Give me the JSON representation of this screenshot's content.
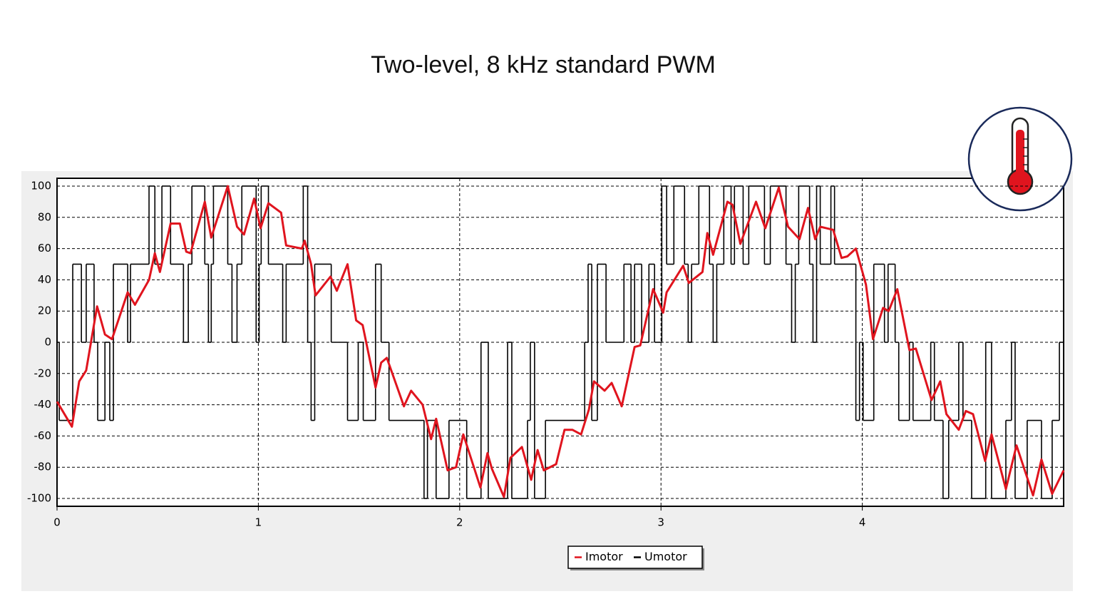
{
  "chart_data": {
    "type": "line",
    "title": "Two-level, 8 kHz standard PWM",
    "xlim": [
      0,
      5
    ],
    "xticks": [
      0,
      1,
      2,
      3,
      4
    ],
    "ylim": [
      -105,
      105
    ],
    "yticks": [
      -100,
      -80,
      -60,
      -40,
      -20,
      0,
      20,
      40,
      60,
      80,
      100
    ],
    "grid": true,
    "legend": "bottom",
    "series": [
      {
        "name": "Umotor",
        "color": "#000000",
        "drawstyle": "steps-post",
        "x": [
          0,
          0.011,
          0.078,
          0.121,
          0.145,
          0.184,
          0.202,
          0.238,
          0.262,
          0.28,
          0.351,
          0.365,
          0.457,
          0.486,
          0.521,
          0.564,
          0.628,
          0.652,
          0.67,
          0.734,
          0.752,
          0.766,
          0.777,
          0.848,
          0.869,
          0.894,
          0.918,
          0.989,
          1.004,
          1.014,
          1.05,
          1.121,
          1.138,
          1.223,
          1.245,
          1.262,
          1.28,
          1.362,
          1.443,
          1.496,
          1.521,
          1.582,
          1.61,
          1.649,
          1.823,
          1.84,
          1.883,
          1.947,
          2.035,
          2.106,
          2.142,
          2.238,
          2.259,
          2.337,
          2.351,
          2.372,
          2.426,
          2.621,
          2.638,
          2.656,
          2.684,
          2.727,
          2.816,
          2.851,
          2.869,
          2.904,
          2.94,
          2.968,
          3.004,
          3.028,
          3.064,
          3.117,
          3.135,
          3.152,
          3.188,
          3.241,
          3.259,
          3.277,
          3.312,
          3.348,
          3.365,
          3.408,
          3.436,
          3.514,
          3.543,
          3.621,
          3.649,
          3.667,
          3.684,
          3.738,
          3.755,
          3.773,
          3.791,
          3.844,
          3.862,
          3.968,
          3.986,
          4.004,
          4.057,
          4.11,
          4.128,
          4.163,
          4.181,
          4.234,
          4.252,
          4.34,
          4.358,
          4.401,
          4.429,
          4.479,
          4.5,
          4.543,
          4.613,
          4.642,
          4.713,
          4.741,
          4.759,
          4.819,
          4.89,
          4.943,
          4.979
        ],
        "values": [
          0,
          -50,
          50,
          0,
          50,
          0,
          -50,
          0,
          -50,
          50,
          0,
          50,
          100,
          50,
          100,
          50,
          0,
          50,
          100,
          50,
          0,
          50,
          100,
          50,
          0,
          50,
          100,
          0,
          50,
          100,
          50,
          0,
          50,
          100,
          0,
          -50,
          50,
          0,
          -50,
          0,
          -50,
          50,
          0,
          -50,
          -100,
          -50,
          -100,
          -50,
          -100,
          0,
          -100,
          0,
          -100,
          -50,
          0,
          -100,
          -50,
          0,
          50,
          -50,
          50,
          0,
          50,
          0,
          50,
          0,
          50,
          0,
          100,
          50,
          100,
          50,
          0,
          50,
          100,
          50,
          0,
          50,
          100,
          50,
          100,
          50,
          100,
          50,
          100,
          50,
          0,
          50,
          100,
          50,
          0,
          100,
          50,
          100,
          50,
          -50,
          0,
          -50,
          50,
          0,
          50,
          0,
          -50,
          0,
          -50,
          0,
          -50,
          -100,
          -50,
          0,
          -50,
          -100,
          0,
          -100,
          -50,
          0,
          -100,
          -50,
          -100,
          -50,
          0
        ]
      },
      {
        "name": "Imotor",
        "color": "#e0141e",
        "x": [
          0,
          0.074,
          0.11,
          0.145,
          0.199,
          0.238,
          0.273,
          0.351,
          0.387,
          0.457,
          0.486,
          0.511,
          0.564,
          0.61,
          0.642,
          0.663,
          0.734,
          0.766,
          0.848,
          0.894,
          0.929,
          0.979,
          1.011,
          1.05,
          1.113,
          1.138,
          1.216,
          1.23,
          1.262,
          1.284,
          1.358,
          1.39,
          1.443,
          1.486,
          1.518,
          1.582,
          1.61,
          1.638,
          1.723,
          1.759,
          1.816,
          1.858,
          1.883,
          1.94,
          1.982,
          2.018,
          2.103,
          2.138,
          2.16,
          2.22,
          2.252,
          2.309,
          2.355,
          2.387,
          2.418,
          2.479,
          2.521,
          2.56,
          2.603,
          2.642,
          2.667,
          2.72,
          2.755,
          2.805,
          2.869,
          2.897,
          2.961,
          3.011,
          3.028,
          3.11,
          3.138,
          3.206,
          3.23,
          3.259,
          3.33,
          3.355,
          3.394,
          3.472,
          3.518,
          3.585,
          3.631,
          3.688,
          3.73,
          3.766,
          3.791,
          3.855,
          3.897,
          3.926,
          3.968,
          4.018,
          4.053,
          4.103,
          4.131,
          4.174,
          4.234,
          4.266,
          4.344,
          4.387,
          4.418,
          4.479,
          4.514,
          4.55,
          4.61,
          4.642,
          4.713,
          4.766,
          4.848,
          4.89,
          4.943,
          5.0
        ],
        "values": [
          -38,
          -54,
          -25,
          -18,
          23,
          5,
          2,
          32,
          24,
          40,
          57,
          45,
          76,
          76,
          58,
          57,
          90,
          67,
          100,
          74,
          69,
          92,
          73,
          89,
          83,
          62,
          60,
          65,
          50,
          30,
          42,
          33,
          50,
          14,
          11,
          -29,
          -13,
          -10,
          -41,
          -31,
          -40,
          -62,
          -49,
          -82,
          -80,
          -59,
          -93,
          -71,
          -81,
          -99,
          -74,
          -67,
          -88,
          -69,
          -82,
          -78,
          -56,
          -56,
          -59,
          -43,
          -25,
          -31,
          -26,
          -41,
          -3,
          -2,
          34,
          19,
          32,
          49,
          38,
          45,
          70,
          56,
          90,
          88,
          63,
          90,
          73,
          99,
          74,
          66,
          86,
          66,
          74,
          72,
          54,
          55,
          60,
          37,
          2,
          22,
          20,
          34,
          -5,
          -4,
          -37,
          -25,
          -46,
          -56,
          -44,
          -46,
          -76,
          -59,
          -94,
          -66,
          -98,
          -75,
          -97,
          -82
        ]
      }
    ]
  }
}
